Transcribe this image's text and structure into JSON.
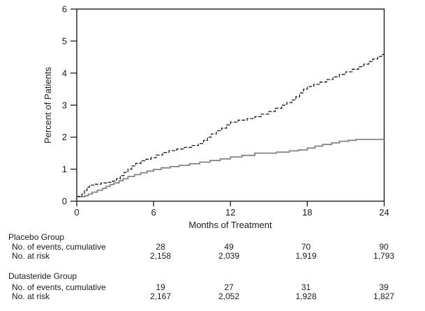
{
  "chart_data": {
    "type": "line",
    "subtype": "step-after",
    "title": "",
    "xlabel": "Months of Treatment",
    "ylabel": "Percent of Patients",
    "xlim": [
      0,
      24
    ],
    "ylim": [
      0,
      6
    ],
    "xticks": [
      0,
      6,
      12,
      18,
      24
    ],
    "yticks": [
      0,
      1,
      2,
      3,
      4,
      5,
      6
    ],
    "grid": false,
    "legend": "none",
    "series": [
      {
        "name": "Placebo",
        "line_style": "dashed",
        "color": "#1c1c1c",
        "points": [
          [
            0,
            0.15
          ],
          [
            0.4,
            0.22
          ],
          [
            0.6,
            0.33
          ],
          [
            0.8,
            0.44
          ],
          [
            1.0,
            0.5
          ],
          [
            1.4,
            0.53
          ],
          [
            1.9,
            0.57
          ],
          [
            2.4,
            0.59
          ],
          [
            2.8,
            0.63
          ],
          [
            3.1,
            0.7
          ],
          [
            3.4,
            0.8
          ],
          [
            3.7,
            0.9
          ],
          [
            4.0,
            1.0
          ],
          [
            4.3,
            1.1
          ],
          [
            4.6,
            1.18
          ],
          [
            5.0,
            1.26
          ],
          [
            5.4,
            1.31
          ],
          [
            5.8,
            1.36
          ],
          [
            6.2,
            1.44
          ],
          [
            6.7,
            1.52
          ],
          [
            7.2,
            1.58
          ],
          [
            7.8,
            1.63
          ],
          [
            8.4,
            1.68
          ],
          [
            9.0,
            1.74
          ],
          [
            9.5,
            1.8
          ],
          [
            9.9,
            1.9
          ],
          [
            10.2,
            2.0
          ],
          [
            10.5,
            2.1
          ],
          [
            10.9,
            2.2
          ],
          [
            11.3,
            2.28
          ],
          [
            11.7,
            2.38
          ],
          [
            12.0,
            2.47
          ],
          [
            12.6,
            2.53
          ],
          [
            13.3,
            2.58
          ],
          [
            13.9,
            2.64
          ],
          [
            14.4,
            2.72
          ],
          [
            15.0,
            2.8
          ],
          [
            15.5,
            2.9
          ],
          [
            16.0,
            3.0
          ],
          [
            16.4,
            3.08
          ],
          [
            16.8,
            3.16
          ],
          [
            17.1,
            3.26
          ],
          [
            17.4,
            3.38
          ],
          [
            17.7,
            3.5
          ],
          [
            18.0,
            3.58
          ],
          [
            18.5,
            3.65
          ],
          [
            19.0,
            3.72
          ],
          [
            19.5,
            3.8
          ],
          [
            20.0,
            3.88
          ],
          [
            20.5,
            3.96
          ],
          [
            21.0,
            4.04
          ],
          [
            21.5,
            4.12
          ],
          [
            22.0,
            4.2
          ],
          [
            22.4,
            4.28
          ],
          [
            22.8,
            4.36
          ],
          [
            23.1,
            4.44
          ],
          [
            23.5,
            4.52
          ],
          [
            23.8,
            4.58
          ],
          [
            24.0,
            4.68
          ]
        ]
      },
      {
        "name": "Dutasteride",
        "line_style": "solid",
        "color": "#848484",
        "points": [
          [
            0,
            0.14
          ],
          [
            0.6,
            0.17
          ],
          [
            0.9,
            0.22
          ],
          [
            1.2,
            0.28
          ],
          [
            1.6,
            0.34
          ],
          [
            2.0,
            0.4
          ],
          [
            2.3,
            0.46
          ],
          [
            2.6,
            0.52
          ],
          [
            2.9,
            0.57
          ],
          [
            3.3,
            0.64
          ],
          [
            3.6,
            0.7
          ],
          [
            4.0,
            0.77
          ],
          [
            4.5,
            0.83
          ],
          [
            5.0,
            0.89
          ],
          [
            5.5,
            0.94
          ],
          [
            6.0,
            0.99
          ],
          [
            6.6,
            1.04
          ],
          [
            7.3,
            1.08
          ],
          [
            8.0,
            1.12
          ],
          [
            8.8,
            1.17
          ],
          [
            9.6,
            1.22
          ],
          [
            10.4,
            1.27
          ],
          [
            11.2,
            1.32
          ],
          [
            12.0,
            1.38
          ],
          [
            12.9,
            1.43
          ],
          [
            13.9,
            1.5
          ],
          [
            15.6,
            1.53
          ],
          [
            16.6,
            1.57
          ],
          [
            17.3,
            1.6
          ],
          [
            18.0,
            1.66
          ],
          [
            18.6,
            1.72
          ],
          [
            19.2,
            1.77
          ],
          [
            19.9,
            1.82
          ],
          [
            20.5,
            1.87
          ],
          [
            21.2,
            1.9
          ],
          [
            21.8,
            1.93
          ],
          [
            24.0,
            1.93
          ]
        ]
      }
    ]
  },
  "risk_table": {
    "eval_months": [
      6,
      12,
      18,
      24
    ],
    "groups": [
      {
        "name": "Placebo Group",
        "rows": [
          {
            "label": "No. of events, cumulative",
            "values": [
              "28",
              "49",
              "70",
              "90"
            ]
          },
          {
            "label": "No. at risk",
            "values": [
              "2,158",
              "2,039",
              "1,919",
              "1,793"
            ]
          }
        ]
      },
      {
        "name": "Dutasteride Group",
        "rows": [
          {
            "label": "No. of events, cumulative",
            "values": [
              "19",
              "27",
              "31",
              "39"
            ]
          },
          {
            "label": "No. at risk",
            "values": [
              "2,167",
              "2,052",
              "1,928",
              "1,827"
            ]
          }
        ]
      }
    ]
  }
}
